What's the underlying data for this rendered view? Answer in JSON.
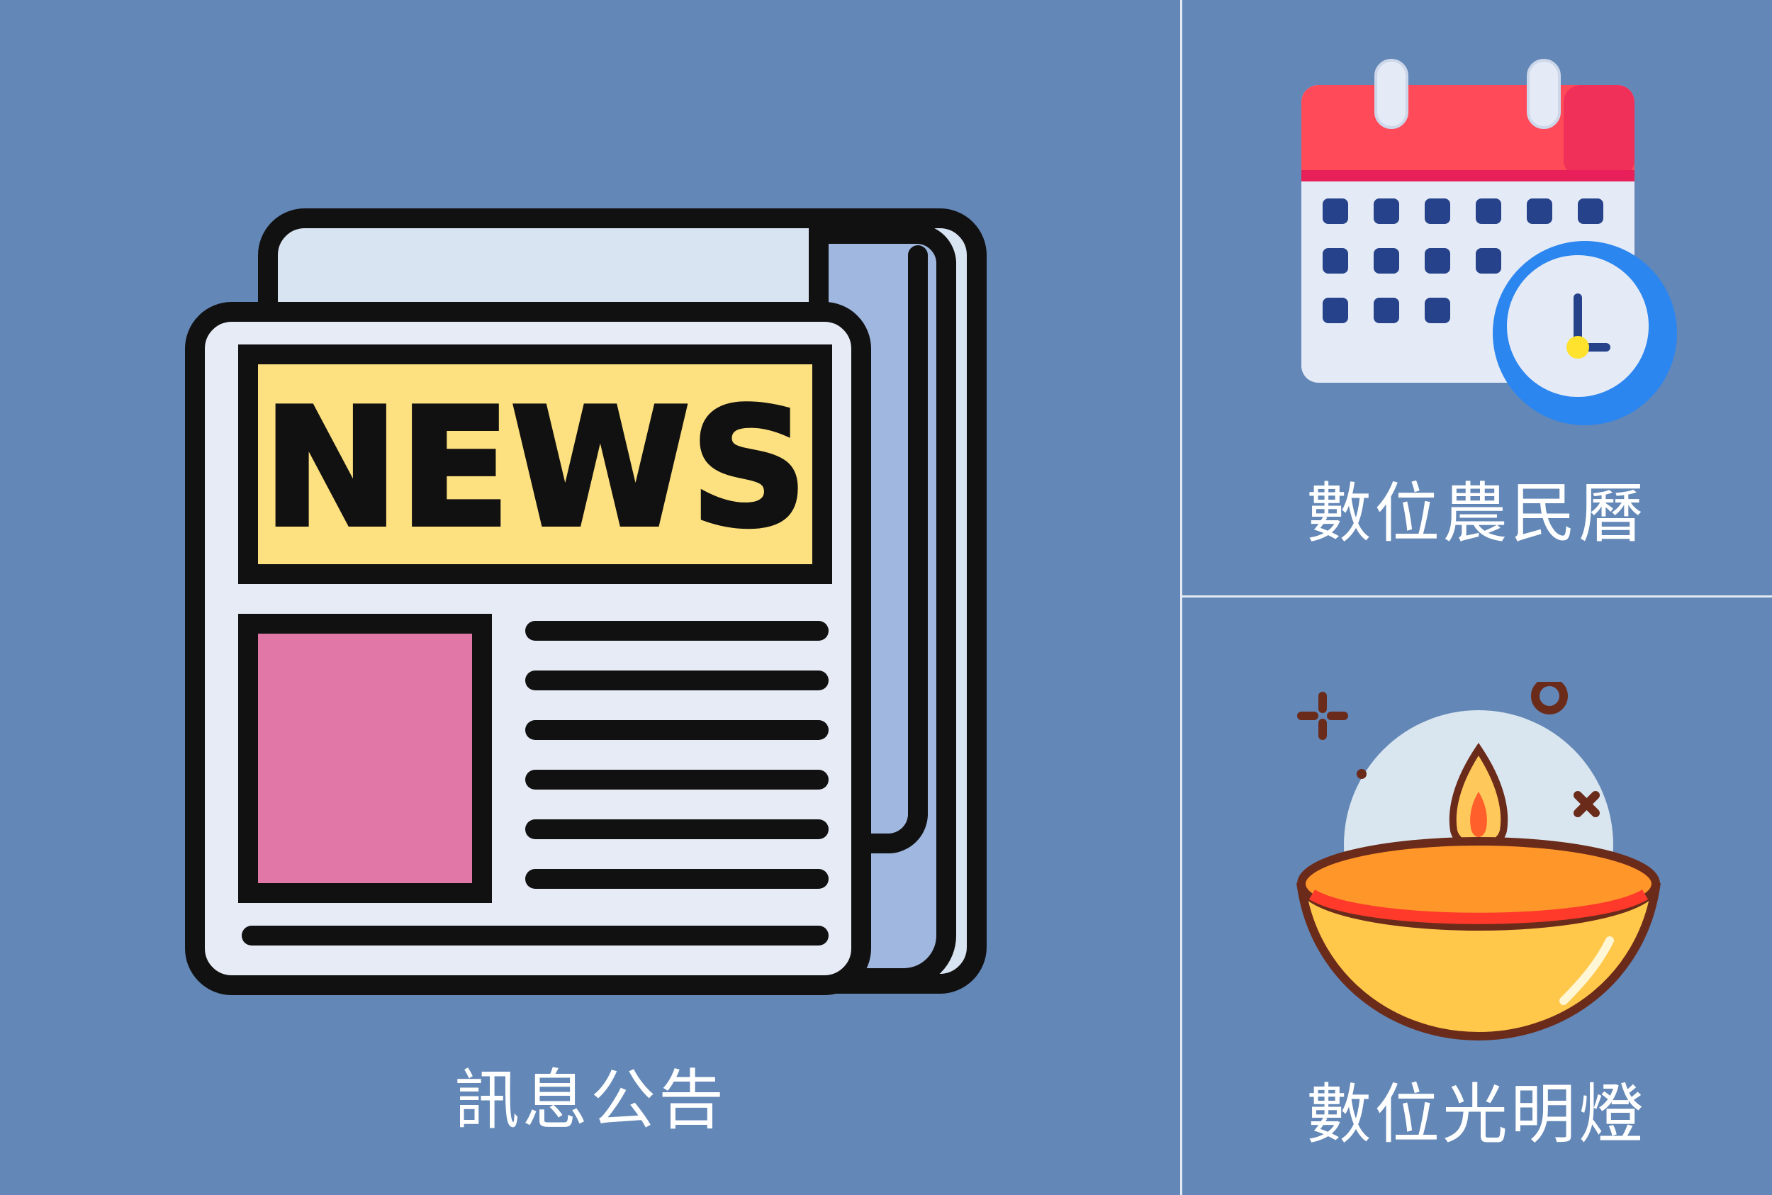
{
  "tiles": {
    "news": {
      "label": "訊息公告",
      "icon": "newspaper-icon",
      "headline": "NEWS"
    },
    "calendar": {
      "label": "數位農民曆",
      "icon": "calendar-clock-icon"
    },
    "lamp": {
      "label": "數位光明燈",
      "icon": "oil-lamp-icon"
    }
  },
  "colors": {
    "background": "#6387b6",
    "divider": "#e4ebf5",
    "label": "#ffffff"
  }
}
